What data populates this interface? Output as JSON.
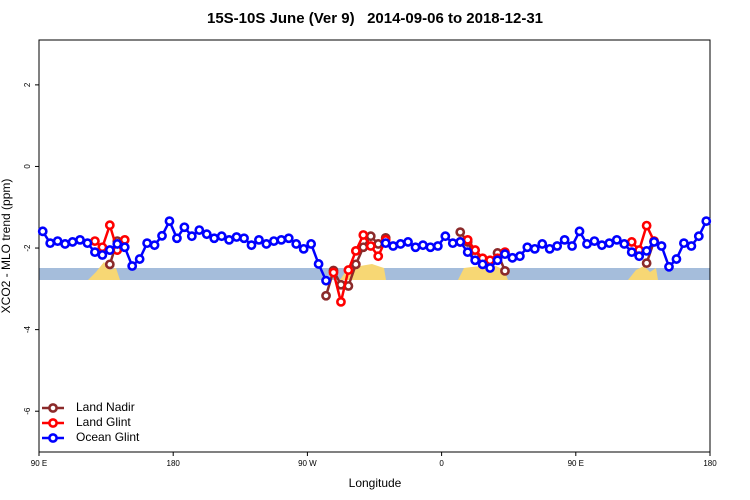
{
  "chart_data": {
    "type": "line",
    "title": "15S-10S June (Ver 9)   2014-09-06 to 2018-12-31",
    "x_label": "Longitude",
    "y_label": "XCO2 - MLO trend (ppm)",
    "xlim": [
      90,
      540
    ],
    "xticks": [
      {
        "value": 90,
        "label": "90 E"
      },
      {
        "value": 180,
        "label": "180"
      },
      {
        "value": 270,
        "label": "90 W"
      },
      {
        "value": 360,
        "label": "0"
      },
      {
        "value": 450,
        "label": "90 E"
      },
      {
        "value": 540,
        "label": "180"
      }
    ],
    "ylim": [
      -7,
      3.1
    ],
    "yticks": [
      -6,
      -4,
      -2,
      0,
      2
    ],
    "grid": false,
    "legend": "bottom-left",
    "series": [
      {
        "name": "Land Nadir",
        "color": "#8b2a2a",
        "x": [
          137.5,
          142.5,
          147.5,
          282.5,
          287.5,
          292.5,
          297.5,
          302.5,
          307.5,
          312.5,
          317.5,
          322.5,
          327.5,
          372.5,
          377.5,
          382.5,
          387.5,
          392.5,
          397.5,
          402.5,
          407.5,
          497.5,
          502.5
        ],
        "values": [
          -2.4,
          -1.83,
          null,
          -3.17,
          -2.55,
          -2.9,
          -2.93,
          -2.4,
          -1.98,
          -1.71,
          -1.9,
          -1.75,
          null,
          -1.61,
          -1.85,
          -2.2,
          -2.3,
          -2.35,
          -2.12,
          -2.56,
          null,
          -2.37,
          -1.83
        ]
      },
      {
        "name": "Land Glint",
        "color": "#ff0000",
        "x": [
          127.5,
          132.5,
          137.5,
          142.5,
          147.5,
          152.5,
          287.5,
          292.5,
          297.5,
          302.5,
          307.5,
          312.5,
          317.5,
          322.5,
          327.5,
          372.5,
          377.5,
          382.5,
          387.5,
          392.5,
          397.5,
          402.5,
          407.5,
          487.5,
          492.5,
          497.5,
          502.5
        ],
        "values": [
          -1.83,
          -1.98,
          -1.44,
          -2.05,
          -1.8,
          null,
          -2.6,
          -3.32,
          -2.54,
          -2.07,
          -1.68,
          -1.95,
          -2.2,
          -1.8,
          null,
          -1.85,
          -1.8,
          -2.05,
          -2.25,
          -2.3,
          -2.25,
          -2.1,
          null,
          -1.85,
          -2.05,
          -1.45,
          -1.83
        ]
      },
      {
        "name": "Ocean Glint",
        "color": "#0000ff",
        "x": [
          92.5,
          97.5,
          102.5,
          107.5,
          112.5,
          117.5,
          122.5,
          127.5,
          132.5,
          137.5,
          142.5,
          147.5,
          152.5,
          157.5,
          162.5,
          167.5,
          172.5,
          177.5,
          182.5,
          187.5,
          192.5,
          197.5,
          202.5,
          207.5,
          212.5,
          217.5,
          222.5,
          227.5,
          232.5,
          237.5,
          242.5,
          247.5,
          252.5,
          257.5,
          262.5,
          267.5,
          272.5,
          277.5,
          282.5,
          302.5,
          322.5,
          327.5,
          332.5,
          337.5,
          342.5,
          347.5,
          352.5,
          357.5,
          362.5,
          367.5,
          372.5,
          377.5,
          382.5,
          387.5,
          392.5,
          397.5,
          402.5,
          407.5,
          412.5,
          417.5,
          422.5,
          427.5,
          432.5,
          437.5,
          442.5,
          447.5,
          452.5,
          457.5,
          462.5,
          467.5,
          472.5,
          477.5,
          482.5,
          487.5,
          492.5,
          497.5,
          502.5,
          507.5,
          512.5,
          517.5,
          522.5,
          527.5,
          532.5,
          537.5
        ],
        "values": [
          -1.59,
          -1.88,
          -1.83,
          -1.9,
          -1.85,
          -1.8,
          -1.88,
          -2.1,
          -2.17,
          -2.05,
          -1.9,
          -1.98,
          -2.44,
          -2.27,
          -1.88,
          -1.93,
          -1.7,
          -1.34,
          -1.76,
          -1.49,
          -1.71,
          -1.56,
          -1.66,
          -1.76,
          -1.71,
          -1.8,
          -1.73,
          -1.76,
          -1.93,
          -1.8,
          -1.9,
          -1.83,
          -1.8,
          -1.76,
          -1.9,
          -2.02,
          -1.9,
          -2.39,
          -2.8,
          null,
          -1.88,
          -1.95,
          -1.9,
          -1.85,
          -1.98,
          -1.93,
          -1.98,
          -1.95,
          -1.71,
          -1.88,
          -1.85,
          -2.1,
          -2.3,
          -2.4,
          -2.49,
          -2.3,
          -2.15,
          -2.24,
          -2.2,
          -1.98,
          -2.02,
          -1.9,
          -2.02,
          -1.95,
          -1.8,
          -1.95,
          -1.59,
          -1.9,
          -1.83,
          -1.93,
          -1.88,
          -1.8,
          -1.9,
          -2.1,
          -2.2,
          -2.07,
          -1.85,
          -1.95,
          -2.46,
          -2.27,
          -1.88,
          -1.95,
          -1.71,
          -1.34
        ]
      }
    ]
  }
}
